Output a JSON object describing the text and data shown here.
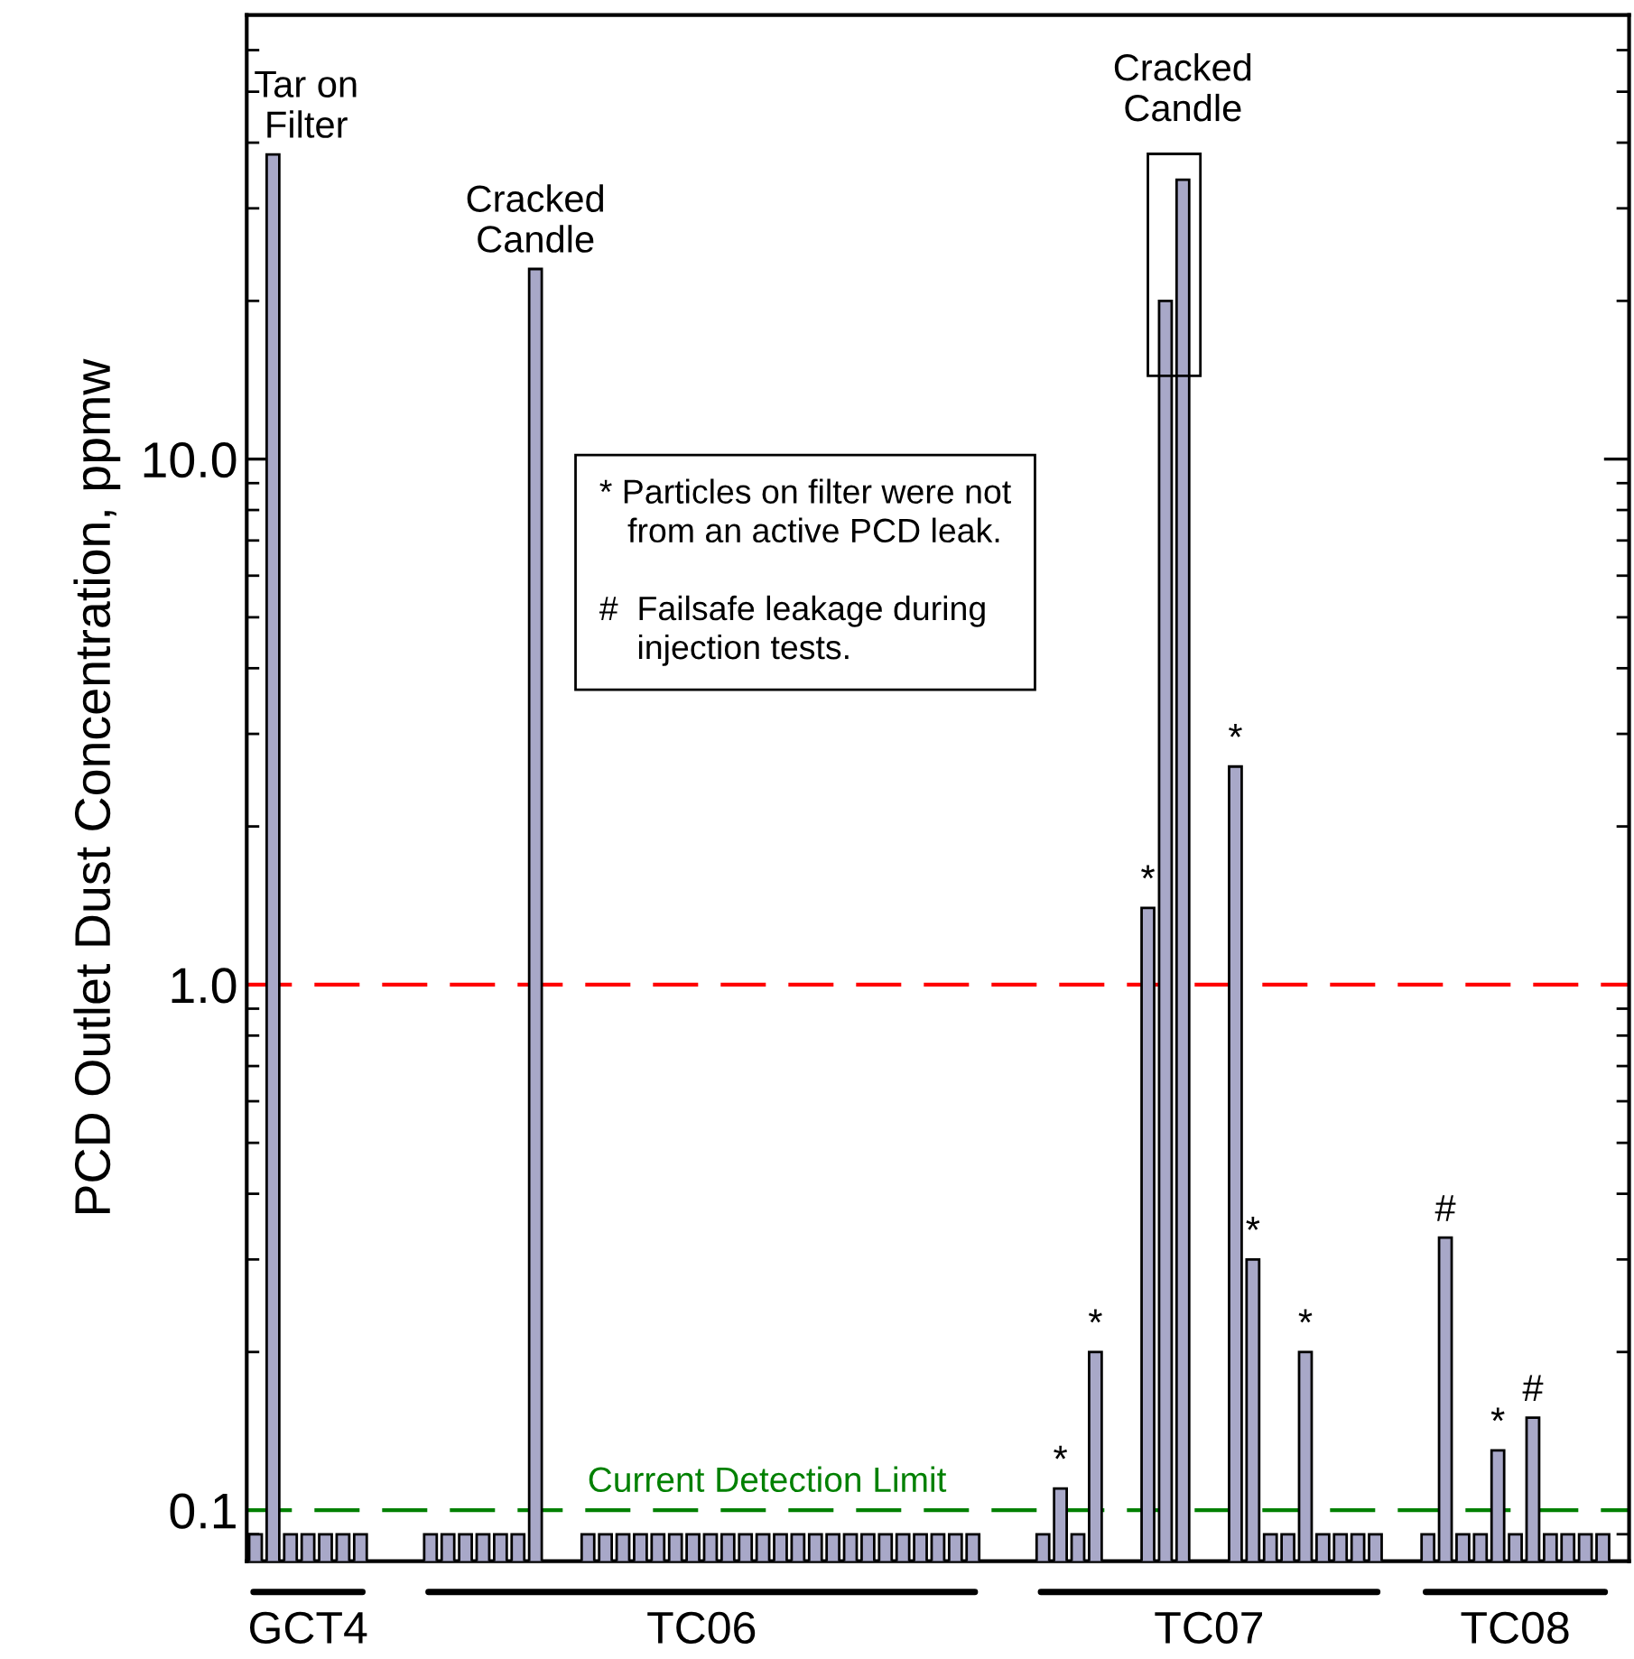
{
  "chart_data": {
    "type": "bar",
    "ylabel": "PCD Outlet Dust Concentration, ppmw",
    "categories": [
      null,
      null,
      null,
      null,
      null,
      null,
      null,
      null,
      null,
      null,
      null,
      null,
      null,
      null,
      null,
      null,
      null,
      null,
      null,
      null,
      null,
      null,
      null,
      null,
      null,
      null,
      null,
      null,
      null,
      null,
      null,
      null,
      null,
      null,
      null,
      null,
      null,
      null,
      null,
      null,
      null,
      null,
      null,
      null,
      null,
      null,
      null,
      null,
      null,
      null,
      null,
      null,
      null,
      null,
      null,
      null,
      null,
      null,
      null,
      null,
      null,
      null,
      null,
      null,
      null,
      null,
      null,
      null,
      null,
      null,
      null,
      null,
      null,
      null,
      null,
      null,
      null,
      null,
      null
    ],
    "values": [
      0.09,
      38,
      0.09,
      0.09,
      0.09,
      0.09,
      0.09,
      null,
      null,
      null,
      0.09,
      0.09,
      0.09,
      0.09,
      0.09,
      0.09,
      23,
      null,
      null,
      0.09,
      0.09,
      0.09,
      0.09,
      0.09,
      0.09,
      0.09,
      0.09,
      0.09,
      0.09,
      0.09,
      0.09,
      0.09,
      0.09,
      0.09,
      0.09,
      0.09,
      0.09,
      0.09,
      0.09,
      0.09,
      0.09,
      0.09,
      null,
      null,
      null,
      0.09,
      0.11,
      0.09,
      0.2,
      null,
      null,
      1.4,
      20,
      34,
      null,
      null,
      2.6,
      0.3,
      0.09,
      0.09,
      0.2,
      0.09,
      0.09,
      0.09,
      0.09,
      null,
      null,
      0.09,
      0.33,
      0.09,
      0.09,
      0.13,
      0.09,
      0.15,
      0.09,
      0.09,
      0.09,
      0.09,
      null
    ],
    "value_labels": [
      null,
      "Tar on\nFilter",
      null,
      null,
      null,
      null,
      null,
      null,
      null,
      null,
      null,
      null,
      null,
      null,
      null,
      null,
      "Cracked\nCandle",
      null,
      null,
      null,
      null,
      null,
      null,
      null,
      null,
      null,
      null,
      null,
      null,
      null,
      null,
      null,
      null,
      null,
      null,
      null,
      null,
      null,
      null,
      null,
      null,
      null,
      null,
      null,
      null,
      null,
      "*",
      null,
      "*",
      null,
      null,
      "*",
      null,
      "Cracked\nCandle",
      null,
      null,
      "*",
      "*",
      null,
      null,
      "*",
      null,
      null,
      null,
      null,
      null,
      null,
      null,
      "#",
      null,
      null,
      "*",
      null,
      "#",
      null,
      null,
      null,
      null,
      null
    ],
    "color": "#a8a8c8",
    "log": true,
    "ylim": [
      0.08,
      70
    ],
    "yticks": [
      0.1,
      {
        "value": 1,
        "label": "1.0"
      },
      {
        "value": 10,
        "label": "10.0"
      }
    ],
    "tick_labels": "y",
    "grid": false,
    "ref_lines": [
      {
        "axis": "y",
        "value": 1,
        "label": null,
        "color": "#ff0000",
        "line_style": "dashed"
      },
      {
        "axis": "y",
        "value": 0.1,
        "label": "Current Detection Limit",
        "color": "#008000",
        "line_style": "dashed"
      }
    ],
    "annotations": [
      "* Particles on filter were not\n   from an active PCD leak.",
      "#  Failsafe leakage during\n    injection tests.",
      "GCT4",
      "TC06",
      "TC07",
      "TC08"
    ]
  }
}
